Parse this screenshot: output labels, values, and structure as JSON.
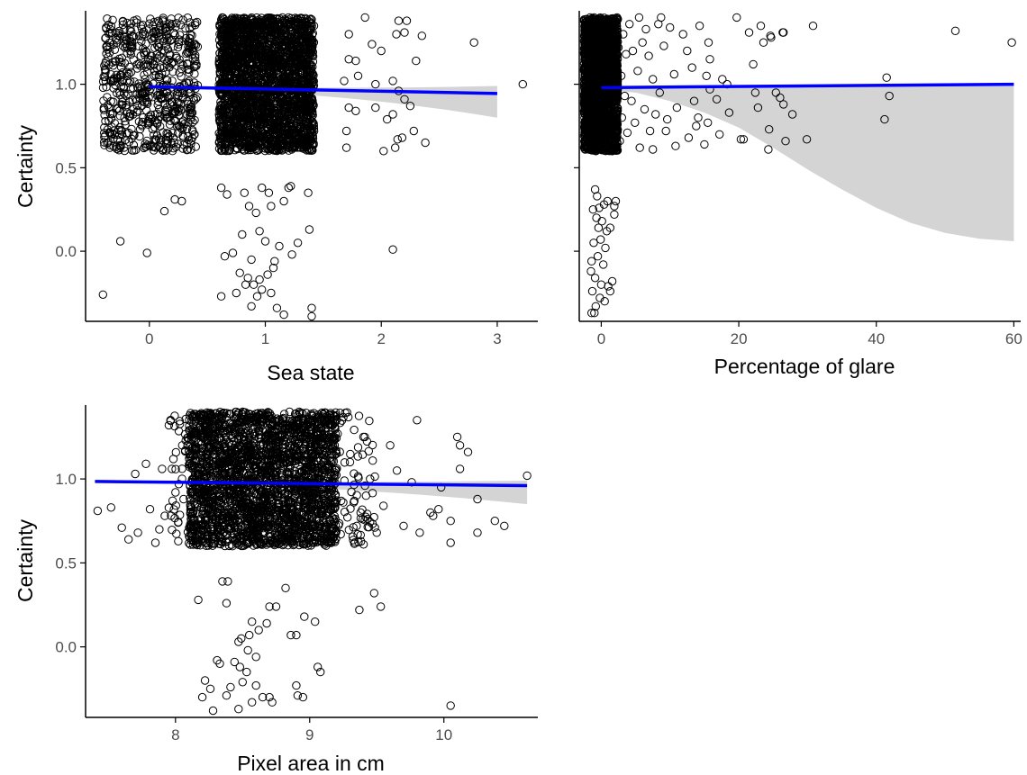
{
  "chart_data": [
    {
      "type": "scatter",
      "xlabel": "Sea state",
      "ylabel": "Certainty",
      "xlim": [
        -0.55,
        3.35
      ],
      "ylim": [
        -0.42,
        1.44
      ],
      "x_ticks": [
        0,
        1,
        2,
        3
      ],
      "y_ticks": [
        0.0,
        0.5,
        1.0
      ],
      "x_tick_labels": [
        "0",
        "1",
        "2",
        "3"
      ],
      "y_tick_labels": [
        "0.0",
        "0.5",
        "1.0"
      ],
      "trend": {
        "x": [
          0,
          3
        ],
        "y": [
          0.985,
          0.945
        ],
        "ci_upper": [
          0.995,
          0.99
        ],
        "ci_lower": [
          0.975,
          0.8
        ]
      },
      "points": [
        [
          -0.4,
          -0.26
        ],
        [
          -0.25,
          0.06
        ],
        [
          -0.02,
          -0.01
        ],
        [
          0.13,
          0.24
        ],
        [
          0.22,
          0.31
        ],
        [
          0.28,
          0.3
        ],
        [
          0.62,
          0.38
        ],
        [
          0.67,
          0.34
        ],
        [
          0.82,
          0.35
        ],
        [
          0.97,
          0.38
        ],
        [
          1.03,
          0.35
        ],
        [
          1.2,
          0.38
        ],
        [
          1.22,
          0.39
        ],
        [
          1.37,
          0.35
        ],
        [
          0.86,
          0.27
        ],
        [
          0.92,
          0.23
        ],
        [
          1.05,
          0.27
        ],
        [
          1.16,
          0.3
        ],
        [
          0.8,
          0.1
        ],
        [
          0.95,
          0.12
        ],
        [
          1.0,
          0.06
        ],
        [
          1.12,
          0.03
        ],
        [
          1.28,
          0.05
        ],
        [
          1.38,
          0.13
        ],
        [
          0.65,
          -0.03
        ],
        [
          0.72,
          -0.01
        ],
        [
          0.88,
          -0.05
        ],
        [
          1.08,
          -0.06
        ],
        [
          1.23,
          -0.02
        ],
        [
          0.78,
          -0.13
        ],
        [
          0.85,
          -0.16
        ],
        [
          0.95,
          -0.17
        ],
        [
          1.07,
          -0.1
        ],
        [
          0.9,
          -0.2
        ],
        [
          0.97,
          -0.23
        ],
        [
          1.02,
          -0.14
        ],
        [
          0.83,
          -0.2
        ],
        [
          0.62,
          -0.27
        ],
        [
          0.75,
          -0.25
        ],
        [
          0.93,
          -0.27
        ],
        [
          0.88,
          -0.33
        ],
        [
          1.1,
          -0.34
        ],
        [
          1.16,
          -0.38
        ],
        [
          1.4,
          -0.34
        ],
        [
          1.4,
          -0.39
        ],
        [
          1.05,
          -0.25
        ],
        [
          2.1,
          0.01
        ],
        [
          3.22,
          1.0
        ],
        [
          2.8,
          1.25
        ],
        [
          1.7,
          0.62
        ],
        [
          1.7,
          0.72
        ],
        [
          1.72,
          0.86
        ],
        [
          1.78,
          0.84
        ],
        [
          1.95,
          0.86
        ],
        [
          2.05,
          0.79
        ],
        [
          2.1,
          0.82
        ],
        [
          2.15,
          0.96
        ],
        [
          2.2,
          0.91
        ],
        [
          2.25,
          0.87
        ],
        [
          2.02,
          0.6
        ],
        [
          2.12,
          0.62
        ],
        [
          2.18,
          0.68
        ],
        [
          2.14,
          0.67
        ],
        [
          2.28,
          0.72
        ],
        [
          2.38,
          0.65
        ],
        [
          1.72,
          1.15
        ],
        [
          1.78,
          1.14
        ],
        [
          1.8,
          1.05
        ],
        [
          1.86,
          1.4
        ],
        [
          1.92,
          1.24
        ],
        [
          2.0,
          1.2
        ],
        [
          2.13,
          1.3
        ],
        [
          2.15,
          1.38
        ],
        [
          2.2,
          1.31
        ],
        [
          2.22,
          1.38
        ],
        [
          2.3,
          1.14
        ],
        [
          2.35,
          1.29
        ],
        [
          1.72,
          1.3
        ],
        [
          1.68,
          1.02
        ],
        [
          2.1,
          1.02
        ],
        [
          1.95,
          1.0
        ]
      ],
      "dense_blocks": [
        {
          "x": [
            -0.4,
            0.42
          ],
          "y": [
            0.6,
            1.4
          ],
          "n": 650
        },
        {
          "x": [
            0.6,
            1.42
          ],
          "y": [
            0.6,
            1.4
          ],
          "n": 2600
        }
      ]
    },
    {
      "type": "scatter",
      "xlabel": "Percentage of glare",
      "ylabel": "",
      "xlim": [
        -3.2,
        61
      ],
      "ylim": [
        -0.42,
        1.44
      ],
      "x_ticks": [
        0,
        20,
        40,
        60
      ],
      "y_ticks": [
        0.0,
        0.5,
        1.0
      ],
      "x_tick_labels": [
        "0",
        "20",
        "40",
        "60"
      ],
      "y_tick_labels": [],
      "trend": {
        "x": [
          0,
          60
        ],
        "y": [
          0.98,
          1.0
        ],
        "ci_upper": [
          0.985,
          1.0
        ],
        "ci_lower": [
          0.97,
          0.06
        ]
      },
      "ci_curve_x": [
        0,
        5,
        10,
        15,
        20,
        25,
        30,
        35,
        40,
        45,
        50,
        55,
        60
      ],
      "ci_curve_y": [
        0.97,
        0.95,
        0.9,
        0.83,
        0.74,
        0.62,
        0.49,
        0.37,
        0.26,
        0.17,
        0.11,
        0.075,
        0.06
      ],
      "points": [
        [
          51.5,
          1.32
        ],
        [
          59.7,
          1.25
        ],
        [
          41.5,
          1.04
        ],
        [
          41.9,
          0.93
        ],
        [
          41.2,
          0.79
        ],
        [
          30.8,
          1.35
        ],
        [
          29.9,
          0.67
        ],
        [
          27.8,
          0.82
        ],
        [
          26.8,
          0.66
        ],
        [
          26.5,
          1.31
        ],
        [
          26.4,
          1.31
        ],
        [
          26.5,
          0.88
        ],
        [
          26.0,
          0.92
        ],
        [
          25.4,
          0.95
        ],
        [
          24.4,
          0.73
        ],
        [
          24.3,
          0.61
        ],
        [
          24.6,
          1.29
        ],
        [
          24.7,
          1.28
        ],
        [
          23.2,
          1.35
        ],
        [
          23.6,
          1.25
        ],
        [
          22.8,
          0.86
        ],
        [
          22.4,
          0.95
        ],
        [
          22.1,
          1.12
        ],
        [
          21.5,
          1.31
        ],
        [
          20.3,
          0.67
        ],
        [
          20.7,
          0.67
        ],
        [
          19.7,
          1.4
        ],
        [
          18.6,
          0.83
        ],
        [
          18.3,
          1.0
        ],
        [
          17.6,
          1.03
        ],
        [
          17.2,
          0.7
        ],
        [
          16.8,
          0.91
        ],
        [
          15.8,
          0.97
        ],
        [
          15.5,
          0.77
        ],
        [
          15.8,
          1.15
        ],
        [
          15.6,
          1.25
        ],
        [
          15.3,
          1.05
        ],
        [
          15.0,
          0.64
        ],
        [
          14.3,
          1.35
        ],
        [
          14.1,
          0.8
        ],
        [
          13.8,
          0.75
        ],
        [
          13.5,
          0.9
        ],
        [
          13.2,
          1.1
        ],
        [
          12.7,
          0.68
        ],
        [
          12.5,
          1.2
        ],
        [
          11.9,
          1.3
        ],
        [
          11.0,
          0.86
        ],
        [
          10.8,
          0.63
        ],
        [
          10.6,
          1.06
        ],
        [
          10.0,
          1.34
        ],
        [
          9.6,
          0.79
        ],
        [
          9.4,
          0.72
        ],
        [
          9.1,
          1.23
        ],
        [
          8.7,
          1.4
        ],
        [
          8.5,
          0.95
        ],
        [
          8.3,
          1.36
        ],
        [
          7.9,
          0.82
        ],
        [
          7.5,
          0.61
        ],
        [
          7.5,
          1.03
        ],
        [
          7.1,
          0.72
        ],
        [
          6.9,
          1.17
        ],
        [
          6.5,
          1.33
        ],
        [
          6.3,
          0.85
        ],
        [
          6.0,
          1.25
        ],
        [
          5.6,
          0.62
        ],
        [
          5.5,
          1.4
        ],
        [
          5.3,
          1.08
        ],
        [
          4.9,
          0.77
        ],
        [
          4.6,
          1.2
        ],
        [
          4.4,
          0.9
        ],
        [
          4.1,
          1.36
        ],
        [
          3.8,
          0.71
        ],
        [
          3.6,
          1.18
        ],
        [
          3.4,
          0.93
        ],
        [
          3.2,
          1.3
        ],
        [
          3.0,
          0.8
        ],
        [
          2.9,
          1.05
        ],
        [
          2.7,
          0.66
        ],
        [
          2.5,
          1.22
        ],
        [
          2.4,
          0.97
        ],
        [
          1.3,
          0.14
        ],
        [
          1.9,
          0.27
        ],
        [
          1.9,
          0.22
        ],
        [
          2.1,
          0.3
        ],
        [
          -0.9,
          0.37
        ],
        [
          -0.6,
          0.33
        ],
        [
          -0.3,
          0.26
        ],
        [
          0.4,
          0.28
        ],
        [
          0.9,
          0.3
        ],
        [
          -1.2,
          0.25
        ],
        [
          -0.7,
          0.2
        ],
        [
          0.1,
          0.18
        ],
        [
          -0.4,
          0.14
        ],
        [
          0.8,
          0.12
        ],
        [
          -1.1,
          0.05
        ],
        [
          -0.1,
          0.07
        ],
        [
          0.6,
          0.02
        ],
        [
          -1.4,
          -0.06
        ],
        [
          -0.5,
          -0.03
        ],
        [
          0.3,
          -0.08
        ],
        [
          -1.5,
          -0.12
        ],
        [
          -0.9,
          -0.16
        ],
        [
          0.0,
          -0.2
        ],
        [
          1.0,
          -0.21
        ],
        [
          -1.3,
          -0.24
        ],
        [
          -0.2,
          -0.28
        ],
        [
          0.5,
          -0.3
        ],
        [
          -0.8,
          -0.33
        ],
        [
          -1.0,
          -0.37
        ],
        [
          -1.4,
          -0.37
        ],
        [
          1.3,
          -0.24
        ],
        [
          1.6,
          -0.18
        ]
      ],
      "dense_blocks": [
        {
          "x": [
            -2.5,
            2.4
          ],
          "y": [
            0.6,
            1.4
          ],
          "n": 2400
        }
      ]
    },
    {
      "type": "scatter",
      "xlabel": "Pixel area in cm",
      "ylabel": "Certainty",
      "xlim": [
        7.33,
        10.7
      ],
      "ylim": [
        -0.42,
        1.44
      ],
      "x_ticks": [
        8,
        9,
        10
      ],
      "y_ticks": [
        0.0,
        0.5,
        1.0
      ],
      "x_tick_labels": [
        "8",
        "9",
        "10"
      ],
      "y_tick_labels": [
        "0.0",
        "0.5",
        "1.0"
      ],
      "trend": {
        "x": [
          7.4,
          10.62
        ],
        "y": [
          0.985,
          0.96
        ],
        "ci_upper": [
          0.99,
          0.99
        ],
        "ci_lower": [
          0.98,
          0.85
        ]
      },
      "points": [
        [
          7.42,
          0.81
        ],
        [
          7.52,
          0.83
        ],
        [
          7.6,
          0.71
        ],
        [
          7.65,
          0.64
        ],
        [
          7.7,
          1.03
        ],
        [
          7.72,
          0.68
        ],
        [
          7.78,
          1.09
        ],
        [
          7.81,
          0.82
        ],
        [
          7.85,
          0.62
        ],
        [
          7.88,
          0.7
        ],
        [
          7.9,
          1.06
        ],
        [
          7.92,
          0.78
        ],
        [
          7.95,
          1.32
        ],
        [
          8.0,
          0.92
        ],
        [
          8.02,
          0.74
        ],
        [
          8.05,
          1.2
        ],
        [
          10.62,
          1.02
        ],
        [
          10.45,
          0.72
        ],
        [
          10.38,
          0.75
        ],
        [
          10.25,
          0.68
        ],
        [
          10.25,
          0.88
        ],
        [
          10.12,
          1.06
        ],
        [
          10.05,
          0.75
        ],
        [
          10.05,
          0.62
        ],
        [
          10.1,
          1.25
        ],
        [
          10.12,
          1.2
        ],
        [
          10.18,
          1.16
        ],
        [
          9.96,
          0.82
        ],
        [
          9.9,
          0.8
        ],
        [
          9.82,
          0.68
        ],
        [
          9.8,
          1.35
        ],
        [
          9.76,
          0.98
        ],
        [
          9.7,
          0.72
        ],
        [
          9.65,
          1.05
        ],
        [
          9.6,
          1.2
        ],
        [
          9.55,
          0.84
        ],
        [
          9.5,
          0.68
        ],
        [
          9.45,
          1.0
        ],
        [
          9.42,
          0.9
        ],
        [
          9.4,
          1.25
        ],
        [
          9.35,
          0.72
        ],
        [
          9.3,
          1.1
        ],
        [
          9.25,
          0.86
        ],
        [
          9.2,
          1.15
        ],
        [
          9.15,
          0.92
        ],
        [
          9.12,
          1.3
        ],
        [
          9.92,
          0.78
        ],
        [
          9.98,
          0.95
        ],
        [
          8.17,
          0.28
        ],
        [
          8.35,
          0.39
        ],
        [
          8.39,
          0.39
        ],
        [
          8.38,
          0.26
        ],
        [
          8.7,
          0.24
        ],
        [
          8.75,
          0.24
        ],
        [
          8.82,
          0.35
        ],
        [
          9.04,
          0.15
        ],
        [
          8.96,
          0.18
        ],
        [
          9.37,
          0.22
        ],
        [
          9.48,
          0.32
        ],
        [
          9.53,
          0.24
        ],
        [
          8.57,
          0.15
        ],
        [
          8.62,
          0.1
        ],
        [
          8.68,
          0.14
        ],
        [
          8.55,
          0.07
        ],
        [
          8.47,
          0.03
        ],
        [
          8.49,
          0.05
        ],
        [
          8.86,
          0.07
        ],
        [
          8.9,
          0.07
        ],
        [
          8.31,
          -0.08
        ],
        [
          8.33,
          -0.1
        ],
        [
          8.44,
          -0.09
        ],
        [
          8.48,
          -0.12
        ],
        [
          8.22,
          -0.2
        ],
        [
          8.26,
          -0.25
        ],
        [
          8.2,
          -0.3
        ],
        [
          8.38,
          -0.29
        ],
        [
          8.41,
          -0.24
        ],
        [
          8.5,
          -0.21
        ],
        [
          8.53,
          -0.15
        ],
        [
          8.6,
          -0.23
        ],
        [
          8.57,
          -0.33
        ],
        [
          8.65,
          -0.3
        ],
        [
          8.7,
          -0.3
        ],
        [
          8.72,
          -0.33
        ],
        [
          8.9,
          -0.23
        ],
        [
          8.91,
          -0.29
        ],
        [
          8.95,
          -0.3
        ],
        [
          9.06,
          -0.12
        ],
        [
          9.08,
          -0.15
        ],
        [
          10.05,
          -0.35
        ],
        [
          8.47,
          -0.37
        ],
        [
          8.28,
          -0.38
        ],
        [
          8.6,
          -0.06
        ],
        [
          8.54,
          -0.02
        ]
      ],
      "dense_blocks": [
        {
          "x": [
            8.1,
            9.2
          ],
          "y": [
            0.6,
            1.4
          ],
          "n": 2400
        },
        {
          "x": [
            7.95,
            9.5
          ],
          "y": [
            0.6,
            1.4
          ],
          "n": 400
        }
      ]
    }
  ],
  "colors": {
    "trend": "#0000ff",
    "ci_band": "#d4d4d4",
    "points": "#000000",
    "axis": "#000000",
    "tick_label": "#4d4d4d"
  }
}
